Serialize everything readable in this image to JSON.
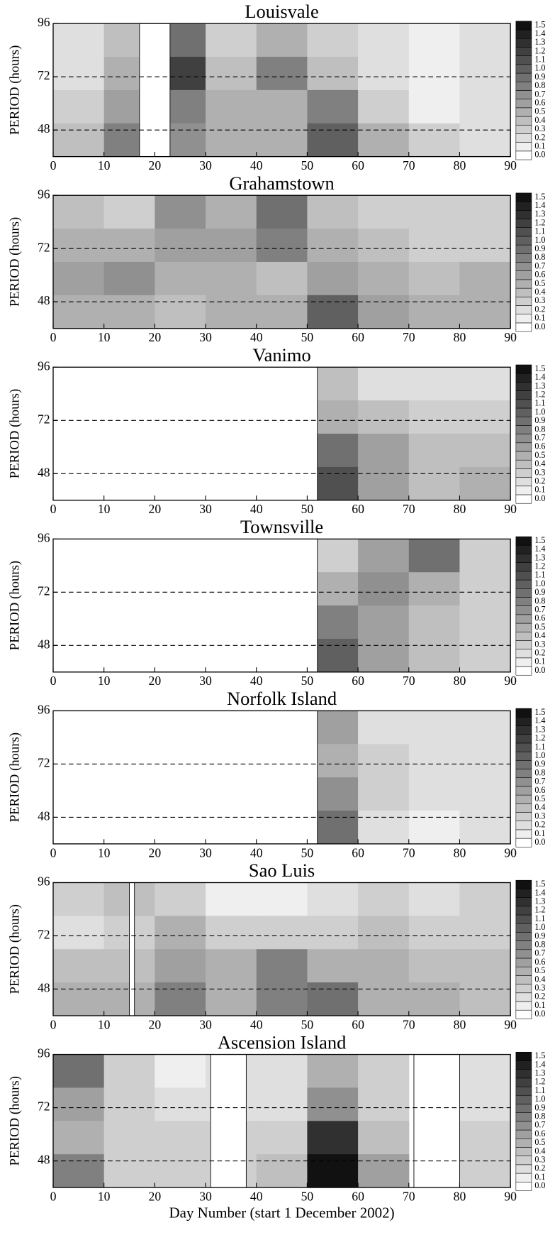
{
  "chart_data": [
    {
      "type": "contour",
      "title": "Louisvale",
      "ylabel": "PERIOD (hours)",
      "xlim": [
        0,
        90
      ],
      "xticks": [
        0,
        10,
        20,
        30,
        40,
        50,
        60,
        70,
        80,
        90
      ],
      "ylim": [
        36,
        96
      ],
      "yticks": [
        48,
        72,
        96
      ],
      "reference_lines": [
        48,
        72
      ],
      "x": [
        5,
        15,
        25,
        35,
        45,
        55,
        65,
        75,
        85
      ],
      "y": [
        88.5,
        73.5,
        58.5,
        43.5
      ],
      "z": [
        [
          0.2,
          0.4,
          0.9,
          0.3,
          0.5,
          0.3,
          0.2,
          0.1,
          0.2
        ],
        [
          0.2,
          0.5,
          1.2,
          0.4,
          0.8,
          0.4,
          0.2,
          0.1,
          0.2
        ],
        [
          0.3,
          0.6,
          0.8,
          0.5,
          0.5,
          0.8,
          0.3,
          0.1,
          0.2
        ],
        [
          0.4,
          0.8,
          0.7,
          0.5,
          0.5,
          1.0,
          0.5,
          0.3,
          0.2
        ]
      ],
      "missing": [
        [
          17,
          23
        ]
      ]
    },
    {
      "type": "contour",
      "title": "Grahamstown",
      "ylabel": "PERIOD (hours)",
      "xlim": [
        0,
        90
      ],
      "xticks": [
        0,
        10,
        20,
        30,
        40,
        50,
        60,
        70,
        80,
        90
      ],
      "ylim": [
        36,
        96
      ],
      "yticks": [
        48,
        72,
        96
      ],
      "reference_lines": [
        48,
        72
      ],
      "x": [
        5,
        15,
        25,
        35,
        45,
        55,
        65,
        75,
        85
      ],
      "y": [
        88.5,
        73.5,
        58.5,
        43.5
      ],
      "z": [
        [
          0.4,
          0.3,
          0.7,
          0.5,
          0.9,
          0.4,
          0.3,
          0.3,
          0.3
        ],
        [
          0.5,
          0.5,
          0.6,
          0.6,
          0.8,
          0.5,
          0.4,
          0.3,
          0.3
        ],
        [
          0.6,
          0.7,
          0.5,
          0.5,
          0.4,
          0.6,
          0.5,
          0.4,
          0.5
        ],
        [
          0.5,
          0.5,
          0.4,
          0.5,
          0.5,
          1.0,
          0.6,
          0.5,
          0.5
        ]
      ],
      "missing": []
    },
    {
      "type": "contour",
      "title": "Vanimo",
      "ylabel": "PERIOD (hours)",
      "xlim": [
        0,
        90
      ],
      "xticks": [
        0,
        10,
        20,
        30,
        40,
        50,
        60,
        70,
        80,
        90
      ],
      "ylim": [
        36,
        96
      ],
      "yticks": [
        48,
        72,
        96
      ],
      "reference_lines": [
        48,
        72
      ],
      "x": [
        5,
        15,
        25,
        35,
        45,
        55,
        65,
        75,
        85
      ],
      "y": [
        88.5,
        73.5,
        58.5,
        43.5
      ],
      "z": [
        [
          null,
          null,
          null,
          null,
          null,
          0.4,
          0.2,
          0.2,
          0.2
        ],
        [
          null,
          null,
          null,
          null,
          null,
          0.5,
          0.4,
          0.3,
          0.3
        ],
        [
          null,
          null,
          null,
          null,
          null,
          0.9,
          0.6,
          0.4,
          0.4
        ],
        [
          null,
          null,
          null,
          null,
          null,
          1.1,
          0.6,
          0.4,
          0.5
        ]
      ],
      "missing": [
        [
          0,
          52
        ]
      ]
    },
    {
      "type": "contour",
      "title": "Townsville",
      "ylabel": "PERIOD (hours)",
      "xlim": [
        0,
        90
      ],
      "xticks": [
        0,
        10,
        20,
        30,
        40,
        50,
        60,
        70,
        80,
        90
      ],
      "ylim": [
        36,
        96
      ],
      "yticks": [
        48,
        72,
        96
      ],
      "reference_lines": [
        48,
        72
      ],
      "x": [
        5,
        15,
        25,
        35,
        45,
        55,
        65,
        75,
        85
      ],
      "y": [
        88.5,
        73.5,
        58.5,
        43.5
      ],
      "z": [
        [
          null,
          null,
          null,
          null,
          null,
          0.3,
          0.6,
          0.9,
          0.3
        ],
        [
          null,
          null,
          null,
          null,
          null,
          0.5,
          0.7,
          0.5,
          0.3
        ],
        [
          null,
          null,
          null,
          null,
          null,
          0.8,
          0.6,
          0.4,
          0.3
        ],
        [
          null,
          null,
          null,
          null,
          null,
          1.0,
          0.6,
          0.4,
          0.3
        ]
      ],
      "missing": [
        [
          0,
          52
        ]
      ]
    },
    {
      "type": "contour",
      "title": "Norfolk Island",
      "ylabel": "PERIOD (hours)",
      "xlim": [
        0,
        90
      ],
      "xticks": [
        0,
        10,
        20,
        30,
        40,
        50,
        60,
        70,
        80,
        90
      ],
      "ylim": [
        36,
        96
      ],
      "yticks": [
        48,
        72,
        96
      ],
      "reference_lines": [
        48,
        72
      ],
      "x": [
        5,
        15,
        25,
        35,
        45,
        55,
        65,
        75,
        85
      ],
      "y": [
        88.5,
        73.5,
        58.5,
        43.5
      ],
      "z": [
        [
          null,
          null,
          null,
          null,
          null,
          0.6,
          0.2,
          0.2,
          0.2
        ],
        [
          null,
          null,
          null,
          null,
          null,
          0.5,
          0.3,
          0.2,
          0.2
        ],
        [
          null,
          null,
          null,
          null,
          null,
          0.7,
          0.3,
          0.2,
          0.2
        ],
        [
          null,
          null,
          null,
          null,
          null,
          0.9,
          0.2,
          0.1,
          0.2
        ]
      ],
      "missing": [
        [
          0,
          52
        ]
      ]
    },
    {
      "type": "contour",
      "title": "Sao Luis",
      "ylabel": "PERIOD (hours)",
      "xlim": [
        0,
        90
      ],
      "xticks": [
        0,
        10,
        20,
        30,
        40,
        50,
        60,
        70,
        80,
        90
      ],
      "ylim": [
        36,
        96
      ],
      "yticks": [
        48,
        72,
        96
      ],
      "reference_lines": [
        48,
        72
      ],
      "x": [
        5,
        15,
        25,
        35,
        45,
        55,
        65,
        75,
        85
      ],
      "y": [
        88.5,
        73.5,
        58.5,
        43.5
      ],
      "z": [
        [
          0.3,
          0.4,
          0.3,
          0.1,
          0.1,
          0.2,
          0.3,
          0.2,
          0.3
        ],
        [
          0.2,
          0.3,
          0.5,
          0.3,
          0.3,
          0.3,
          0.4,
          0.3,
          0.3
        ],
        [
          0.4,
          0.4,
          0.6,
          0.5,
          0.8,
          0.5,
          0.5,
          0.4,
          0.4
        ],
        [
          0.5,
          0.5,
          0.8,
          0.5,
          0.8,
          0.9,
          0.5,
          0.5,
          0.4
        ]
      ],
      "missing": [
        [
          15,
          16
        ]
      ]
    },
    {
      "type": "contour",
      "title": "Ascension Island",
      "ylabel": "PERIOD (hours)",
      "xlabel": "Day Number (start 1 December 2002)",
      "xlim": [
        0,
        90
      ],
      "xticks": [
        0,
        10,
        20,
        30,
        40,
        50,
        60,
        70,
        80,
        90
      ],
      "ylim": [
        36,
        96
      ],
      "yticks": [
        48,
        72,
        96
      ],
      "reference_lines": [
        48,
        72
      ],
      "x": [
        5,
        15,
        25,
        35,
        45,
        55,
        65,
        75,
        85
      ],
      "y": [
        88.5,
        73.5,
        58.5,
        43.5
      ],
      "z": [
        [
          0.9,
          0.3,
          0.1,
          0.2,
          0.2,
          0.5,
          0.3,
          null,
          0.2
        ],
        [
          0.6,
          0.3,
          0.2,
          0.2,
          0.2,
          0.7,
          0.3,
          null,
          0.2
        ],
        [
          0.5,
          0.3,
          0.3,
          0.3,
          0.3,
          1.3,
          0.4,
          null,
          0.3
        ],
        [
          0.8,
          0.3,
          0.3,
          0.3,
          0.4,
          1.5,
          0.6,
          null,
          0.3
        ]
      ],
      "missing": [
        [
          31,
          38
        ],
        [
          71,
          80
        ]
      ]
    }
  ],
  "colorbar": {
    "levels": [
      {
        "value": 0,
        "label": "0.0"
      },
      {
        "value": 0.1,
        "label": "0.1"
      },
      {
        "value": 0.2,
        "label": "0.2"
      },
      {
        "value": 0.3,
        "label": "0.3"
      },
      {
        "value": 0.4,
        "label": "0.4"
      },
      {
        "value": 0.5,
        "label": "0.5"
      },
      {
        "value": 0.6,
        "label": "0.6"
      },
      {
        "value": 0.7,
        "label": "0.7"
      },
      {
        "value": 0.8,
        "label": "0.8"
      },
      {
        "value": 0.9,
        "label": "0.9"
      },
      {
        "value": 1,
        "label": "1.0"
      },
      {
        "value": 1.1,
        "label": "1.1"
      },
      {
        "value": 1.2,
        "label": "1.2"
      },
      {
        "value": 1.3,
        "label": "1.3"
      },
      {
        "value": 1.4,
        "label": "1.4"
      },
      {
        "value": 1.5,
        "label": "1.5"
      }
    ]
  }
}
